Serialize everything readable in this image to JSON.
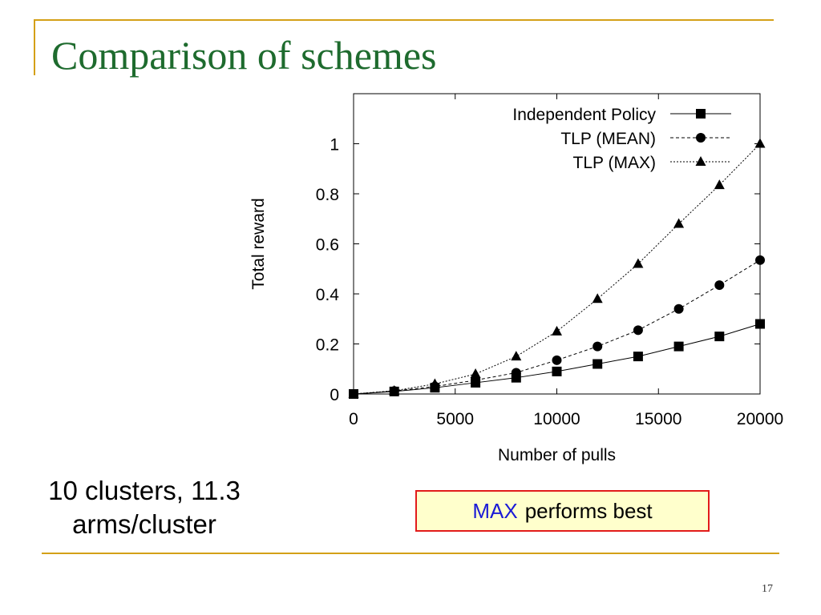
{
  "slide": {
    "title": "Comparison of schemes",
    "note_line1": "10 clusters, 11.3",
    "note_line2": "arms/cluster",
    "callout_accent": "MAX",
    "callout_rest": "performs best",
    "page_number": "17"
  },
  "colors": {
    "title": "#1e6b2e",
    "rules": "#d4a017",
    "callout_border": "#e21b1b",
    "callout_fill": "#ffffcc",
    "callout_accent": "#1a1ad6"
  },
  "chart_data": {
    "type": "line",
    "title": "",
    "xlabel": "Number of pulls",
    "ylabel": "Total reward",
    "xlim": [
      0,
      20000
    ],
    "ylim": [
      0,
      1.2
    ],
    "x_ticks": [
      0,
      5000,
      10000,
      15000,
      20000
    ],
    "x_tick_labels": [
      "0",
      "5000",
      "10000",
      "15000",
      "20000"
    ],
    "y_ticks": [
      0,
      0.2,
      0.4,
      0.6,
      0.8,
      1
    ],
    "y_tick_labels": [
      "0",
      "0.2",
      "0.4",
      "0.6",
      "0.8",
      "1"
    ],
    "grid": false,
    "legend_position": "top-right",
    "x": [
      0,
      2000,
      4000,
      6000,
      8000,
      10000,
      12000,
      14000,
      16000,
      18000,
      20000
    ],
    "series": [
      {
        "name": "Independent Policy",
        "marker": "square",
        "line": "solid",
        "values": [
          0,
          0.01,
          0.025,
          0.045,
          0.065,
          0.09,
          0.12,
          0.15,
          0.19,
          0.23,
          0.28
        ]
      },
      {
        "name": "TLP (MEAN)",
        "marker": "circle",
        "line": "dashed",
        "values": [
          0,
          0.012,
          0.03,
          0.055,
          0.085,
          0.135,
          0.19,
          0.255,
          0.34,
          0.435,
          0.535
        ]
      },
      {
        "name": "TLP (MAX)",
        "marker": "triangle",
        "line": "dotted",
        "values": [
          0,
          0.013,
          0.04,
          0.08,
          0.15,
          0.25,
          0.38,
          0.52,
          0.68,
          0.835,
          1.0
        ]
      }
    ]
  }
}
